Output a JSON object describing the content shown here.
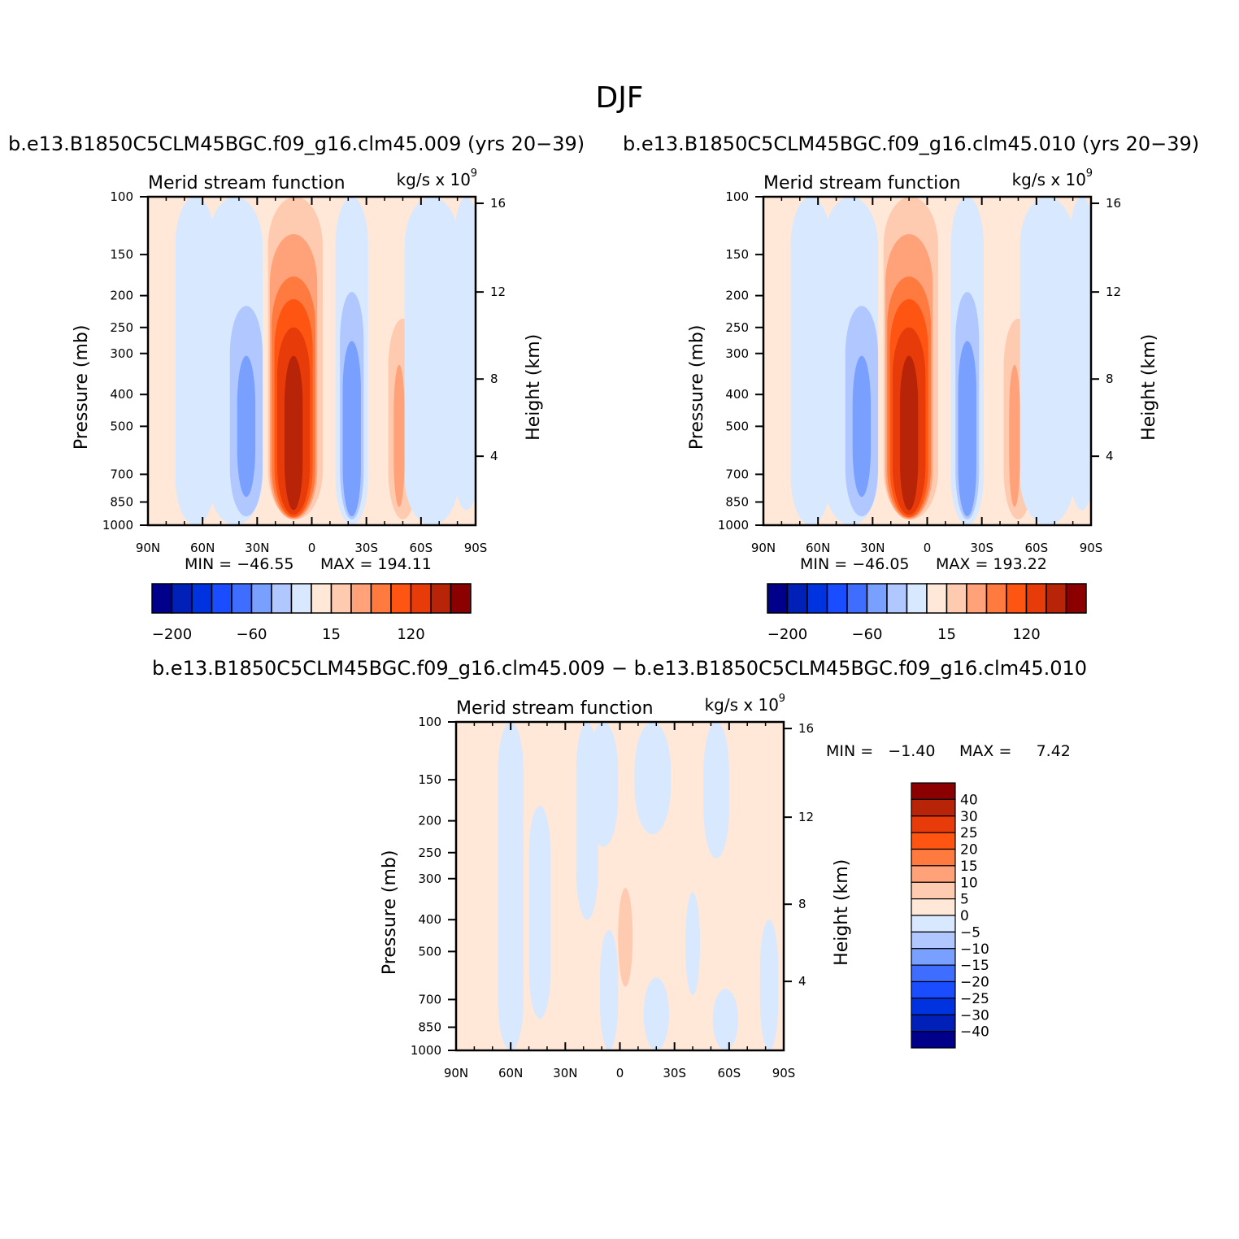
{
  "figure": {
    "title": "DJF",
    "run_a": "b.e13.B1850C5CLM45BGC.f09_g16.clm45.009 (yrs 20−39)",
    "run_b": "b.e13.B1850C5CLM45BGC.f09_g16.clm45.010 (yrs 20−39)",
    "difference_title": "b.e13.B1850C5CLM45BGC.f09_g16.clm45.009 − b.e13.B1850C5CLM45BGC.f09_g16.clm45.010"
  },
  "colors": {
    "neg": [
      "#00008b",
      "#0020b8",
      "#0033e0",
      "#1a4dff",
      "#3f6dff",
      "#7aa0ff",
      "#b0c8ff",
      "#d8e8ff"
    ],
    "pos": [
      "#ffe8d8",
      "#ffcbb0",
      "#ffa27a",
      "#ff7a3f",
      "#ff5512",
      "#e83b0a",
      "#b82408",
      "#8b0000"
    ]
  },
  "chart_data": [
    {
      "type": "heatmap",
      "name": "panel-009",
      "title": "Merid stream function",
      "units": "kg/s x 10",
      "units_exp": "9",
      "xlabel": "",
      "ylabel": "Pressure (mb)",
      "y2label": "Height (km)",
      "x_ticks": [
        "90N",
        "60N",
        "30N",
        "0",
        "30S",
        "60S",
        "90S"
      ],
      "y_ticks": [
        "100",
        "150",
        "200",
        "250",
        "300",
        "400",
        "500",
        "700",
        "850",
        "1000"
      ],
      "y2_ticks": [
        "16",
        "12",
        "8",
        "4"
      ],
      "min_label": "MIN = −46.55",
      "max_label": "MAX = 194.11",
      "min": -46.55,
      "max": 194.11,
      "colorbar_ticks": [
        "−200",
        "−60",
        "15",
        "120"
      ]
    },
    {
      "type": "heatmap",
      "name": "panel-010",
      "title": "Merid stream function",
      "units": "kg/s x 10",
      "units_exp": "9",
      "xlabel": "",
      "ylabel": "Pressure (mb)",
      "y2label": "Height (km)",
      "x_ticks": [
        "90N",
        "60N",
        "30N",
        "0",
        "30S",
        "60S",
        "90S"
      ],
      "y_ticks": [
        "100",
        "150",
        "200",
        "250",
        "300",
        "400",
        "500",
        "700",
        "850",
        "1000"
      ],
      "y2_ticks": [
        "16",
        "12",
        "8",
        "4"
      ],
      "min_label": "MIN = −46.05",
      "max_label": "MAX = 193.22",
      "min": -46.05,
      "max": 193.22,
      "colorbar_ticks": [
        "−200",
        "−60",
        "15",
        "120"
      ]
    },
    {
      "type": "heatmap",
      "name": "panel-difference",
      "title": "Merid stream function",
      "units": "kg/s x 10",
      "units_exp": "9",
      "xlabel": "",
      "ylabel": "Pressure (mb)",
      "y2label": "Height (km)",
      "x_ticks": [
        "90N",
        "60N",
        "30N",
        "0",
        "30S",
        "60S",
        "90S"
      ],
      "y_ticks": [
        "100",
        "150",
        "200",
        "250",
        "300",
        "400",
        "500",
        "700",
        "850",
        "1000"
      ],
      "y2_ticks": [
        "16",
        "12",
        "8",
        "4"
      ],
      "min_label": "MIN =   −1.40",
      "max_label": "MAX =     7.42",
      "min": -1.4,
      "max": 7.42,
      "colorbar_ticks": [
        "40",
        "30",
        "25",
        "20",
        "15",
        "10",
        "5",
        "0",
        "−5",
        "−10",
        "−15",
        "−20",
        "−25",
        "−30",
        "−40"
      ]
    }
  ]
}
